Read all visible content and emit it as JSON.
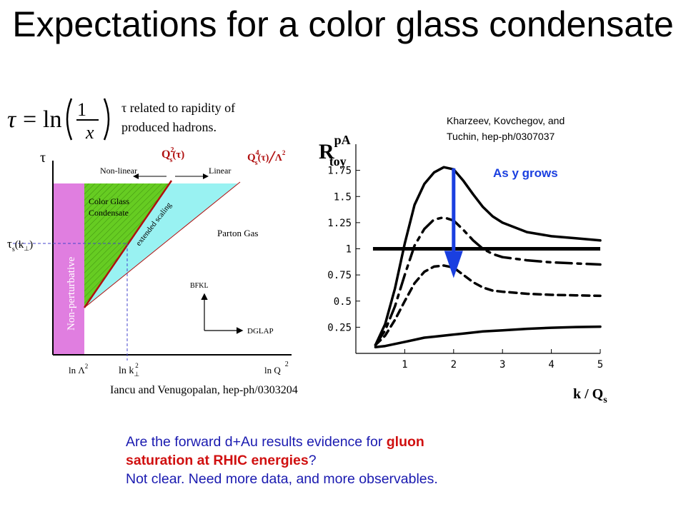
{
  "title": "Expectations for a color glass condensate",
  "formula": {
    "lhs": "τ",
    "eq": "=",
    "ln": "ln",
    "num": "1",
    "den": "x"
  },
  "tau_note": {
    "symbol": "τ",
    "line1": " related to rapidity of",
    "line2": "produced hadrons."
  },
  "left_diagram": {
    "y_axis": "τ",
    "x_label": "ln Q",
    "x_label_exp": "2",
    "tick_lnlambda": "ln Λ",
    "tick_lnlambda_exp": "2",
    "tick_lnk": "ln k",
    "tick_lnk_sub": "⊥",
    "tick_lnk_exp": "2",
    "tau_s": "τ",
    "tau_s_sub": "s",
    "tau_s_arg": "(k",
    "tau_s_arg_sub": "⊥",
    "tau_s_close": ")",
    "nonlinear": "Non-linear",
    "linear": "Linear",
    "qs2": "Q",
    "qs2_sup": "2",
    "qs2_sub": "s",
    "qs2_arg": "(τ)",
    "qs4": "Q",
    "qs4_sup": "4",
    "qs4_sub": "s",
    "qs4_arg": "(τ)",
    "qs4_slash": "╱Λ",
    "qs4_exp": "2",
    "cgc_line1": "Color Glass",
    "cgc_line2": "Condensate",
    "extended_scaling": "extended scaling",
    "parton_gas": "Parton Gas",
    "non_perturbative": "Non-perturbative",
    "bfkl": "BFKL",
    "dglap": "DGLAP"
  },
  "left_citation": "Iancu and Venugopalan, hep-ph/0303204",
  "right_citation": {
    "line1": "Kharzeev, Kovchegov, and",
    "line2": "Tuchin, hep-ph/0307037"
  },
  "chart_data": {
    "type": "line",
    "ylabel": "R",
    "ylabel_sup": "pA",
    "ylabel_sub": "toy",
    "xlabel": "k / Q",
    "xlabel_sub": "s",
    "xlim": [
      0,
      5
    ],
    "ylim": [
      0,
      2
    ],
    "x_ticks": [
      "1",
      "2",
      "3",
      "4",
      "5"
    ],
    "y_ticks": [
      "0.25",
      "0.5",
      "0.75",
      "1",
      "1.25",
      "1.5",
      "1.75"
    ],
    "annotation": "As y grows",
    "reference_line": 1,
    "x": [
      0.4,
      0.6,
      0.8,
      1.0,
      1.2,
      1.4,
      1.6,
      1.8,
      2.0,
      2.2,
      2.4,
      2.6,
      2.8,
      3.0,
      3.5,
      4.0,
      4.5,
      5.0
    ],
    "series": [
      {
        "style": "solid",
        "values": [
          0.08,
          0.28,
          0.62,
          1.05,
          1.42,
          1.62,
          1.73,
          1.78,
          1.76,
          1.65,
          1.52,
          1.4,
          1.31,
          1.25,
          1.16,
          1.12,
          1.1,
          1.08
        ]
      },
      {
        "style": "dash-dot",
        "values": [
          0.08,
          0.22,
          0.45,
          0.75,
          1.03,
          1.19,
          1.28,
          1.3,
          1.27,
          1.18,
          1.08,
          1.0,
          0.95,
          0.92,
          0.89,
          0.87,
          0.86,
          0.85
        ]
      },
      {
        "style": "dashed",
        "values": [
          0.08,
          0.17,
          0.32,
          0.5,
          0.67,
          0.78,
          0.83,
          0.84,
          0.82,
          0.75,
          0.68,
          0.63,
          0.6,
          0.59,
          0.57,
          0.56,
          0.555,
          0.55
        ]
      },
      {
        "style": "solid-low",
        "values": [
          0.06,
          0.07,
          0.09,
          0.11,
          0.13,
          0.15,
          0.16,
          0.17,
          0.18,
          0.19,
          0.2,
          0.21,
          0.215,
          0.22,
          0.235,
          0.245,
          0.252,
          0.255
        ]
      }
    ]
  },
  "bottom": {
    "q_prefix": "Are the forward d+Au results evidence for ",
    "q_red1": "gluon",
    "q_red2": "saturation at RHIC energies",
    "q_suffix": "?",
    "answer": "Not clear.  Need more data, and more observables."
  }
}
